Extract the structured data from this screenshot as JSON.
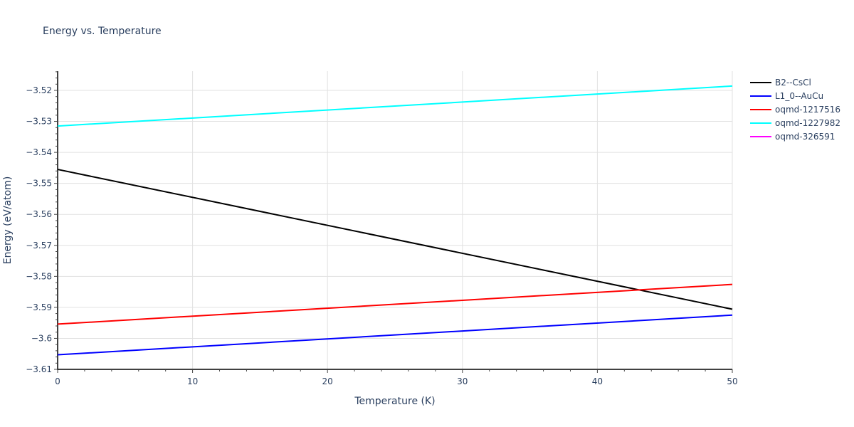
{
  "chart_data": {
    "type": "line",
    "title": "Energy vs. Temperature",
    "xlabel": "Temperature (K)",
    "ylabel": "Energy (eV/atom)",
    "xlim": [
      0,
      50
    ],
    "ylim": [
      -3.61,
      -3.514
    ],
    "x_ticks": [
      0,
      10,
      20,
      30,
      40,
      50
    ],
    "y_ticks": [
      -3.52,
      -3.53,
      -3.54,
      -3.55,
      -3.56,
      -3.57,
      -3.58,
      -3.59,
      -3.6,
      -3.61
    ],
    "y_tick_labels": [
      "−3.52",
      "−3.53",
      "−3.54",
      "−3.55",
      "−3.56",
      "−3.57",
      "−3.58",
      "−3.59",
      "−3.6",
      "−3.61"
    ],
    "grid": true,
    "legend_position": "right",
    "x": [
      0,
      50
    ],
    "series": [
      {
        "name": "B2--CsCl",
        "color": "#000000",
        "values": [
          -3.5455,
          -3.5906
        ]
      },
      {
        "name": "L1_0--AuCu",
        "color": "#0000ff",
        "values": [
          -3.6053,
          -3.5925
        ]
      },
      {
        "name": "oqmd-1217516",
        "color": "#ff0000",
        "values": [
          -3.5954,
          -3.5826
        ]
      },
      {
        "name": "oqmd-1227982",
        "color": "#00ffff",
        "values": [
          -3.5315,
          -3.5186
        ]
      },
      {
        "name": "oqmd-326591",
        "color": "#ff00ff",
        "values": []
      }
    ]
  }
}
